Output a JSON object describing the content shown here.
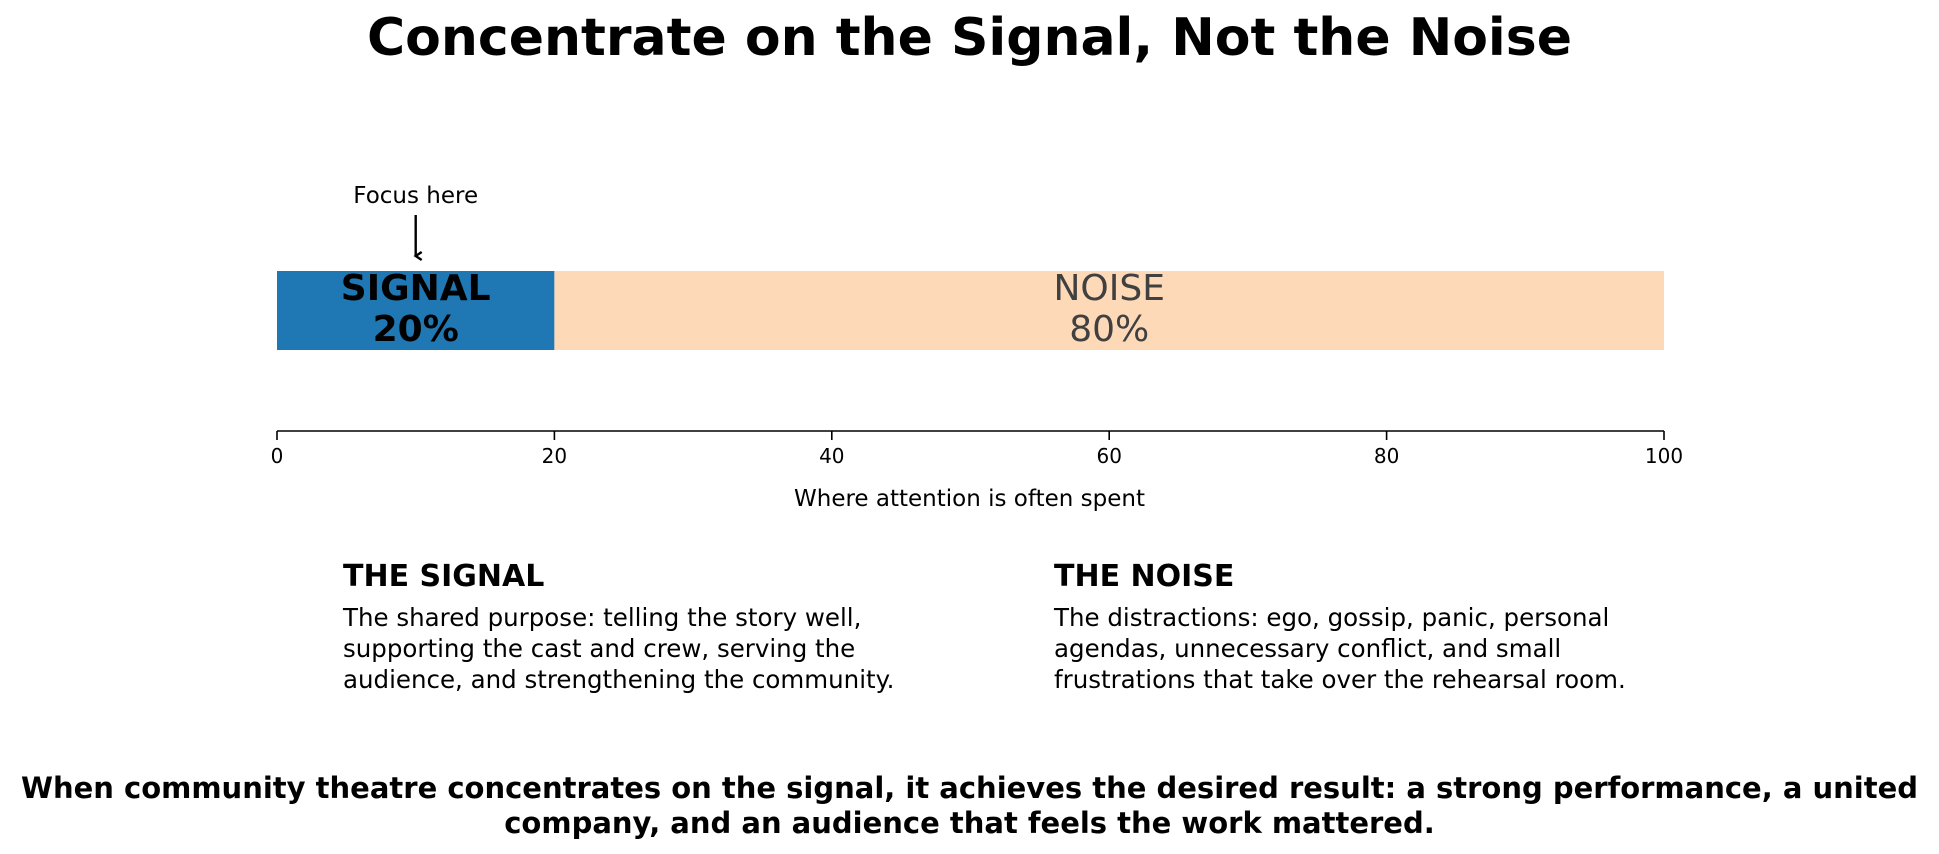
{
  "title": "Concentrate on the Signal, Not the Noise",
  "chart_data": {
    "type": "bar",
    "orientation": "horizontal-stacked",
    "segments": [
      {
        "name": "SIGNAL",
        "value": 20,
        "label": "20%",
        "color": "#1f77b4",
        "text_color": "#000000",
        "bold": true
      },
      {
        "name": "NOISE",
        "value": 80,
        "label": "80%",
        "color": "#fdd9b8",
        "text_color": "#404040",
        "bold": false
      }
    ],
    "xlim": [
      0,
      100
    ],
    "xticks": [
      0,
      20,
      40,
      60,
      80,
      100
    ],
    "xlabel": "Where attention is often spent",
    "annotation": {
      "text": "Focus here",
      "x": 10
    },
    "grid": false
  },
  "signal_panel": {
    "heading": "THE SIGNAL",
    "body": "The shared purpose: telling the story well, supporting the cast and crew, serving the audience, and strengthening the community."
  },
  "noise_panel": {
    "heading": "THE NOISE",
    "body": "The distractions: ego, gossip, panic, personal agendas, unnecessary conflict, and small frustrations that take over the rehearsal room."
  },
  "footer": "When community theatre concentrates on the signal, it achieves the desired result: a strong performance, a united company, and an audience that feels the work mattered."
}
